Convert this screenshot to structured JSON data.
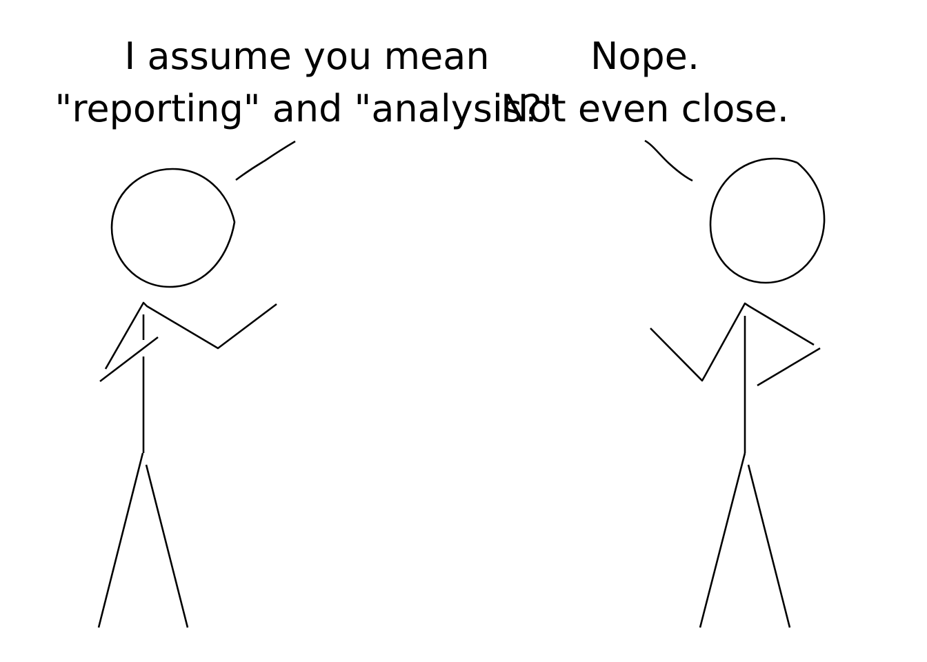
{
  "comic": {
    "left_speaker": {
      "lines": [
        "I assume you mean",
        "\"reporting\" and \"analysis?\""
      ]
    },
    "right_speaker": {
      "lines": [
        "Nope.",
        "Not even close."
      ]
    }
  },
  "colors": {
    "ink": "#000000",
    "background": "#ffffff"
  }
}
